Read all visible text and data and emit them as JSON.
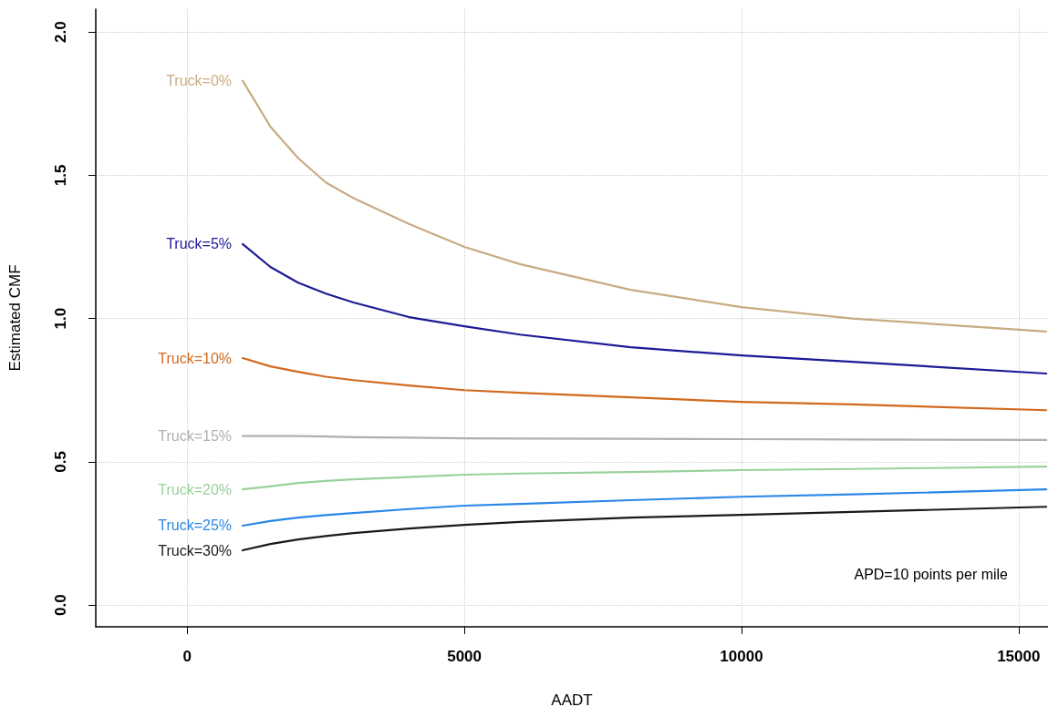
{
  "chart_data": {
    "type": "line",
    "xlabel": "AADT",
    "ylabel": "Estimated CMF",
    "annotations": [
      "APD=10 points per mile"
    ],
    "x": [
      1000,
      1500,
      2000,
      2500,
      3000,
      4000,
      5000,
      6000,
      8000,
      10000,
      12000,
      15500
    ],
    "series": [
      {
        "name": "Truck=0%",
        "color": "#c9ab82",
        "values": [
          1.83,
          1.67,
          1.56,
          1.475,
          1.42,
          1.33,
          1.25,
          1.19,
          1.1,
          1.04,
          1.0,
          0.955
        ]
      },
      {
        "name": "Truck=5%",
        "color": "#1c1a96",
        "values": [
          1.26,
          1.18,
          1.125,
          1.087,
          1.056,
          1.005,
          0.973,
          0.944,
          0.9,
          0.871,
          0.849,
          0.808
        ]
      },
      {
        "name": "Truck=10%",
        "color": "#d2691e",
        "values": [
          0.862,
          0.833,
          0.814,
          0.797,
          0.785,
          0.766,
          0.75,
          0.741,
          0.725,
          0.709,
          0.7,
          0.68
        ]
      },
      {
        "name": "Truck=15%",
        "color": "#b0b0b0",
        "values": [
          0.59,
          0.59,
          0.59,
          0.588,
          0.586,
          0.584,
          0.582,
          0.581,
          0.58,
          0.579,
          0.578,
          0.576
        ]
      },
      {
        "name": "Truck=20%",
        "color": "#99d199",
        "values": [
          0.404,
          0.414,
          0.426,
          0.433,
          0.439,
          0.447,
          0.455,
          0.459,
          0.464,
          0.471,
          0.475,
          0.483
        ]
      },
      {
        "name": "Truck=25%",
        "color": "#2b87e8",
        "values": [
          0.277,
          0.293,
          0.305,
          0.314,
          0.321,
          0.335,
          0.347,
          0.353,
          0.366,
          0.378,
          0.386,
          0.404
        ]
      },
      {
        "name": "Truck=30%",
        "color": "#1a1a1a",
        "values": [
          0.191,
          0.213,
          0.229,
          0.241,
          0.251,
          0.267,
          0.28,
          0.29,
          0.305,
          0.315,
          0.325,
          0.343
        ]
      }
    ],
    "xlim": [
      -1650,
      15530
    ],
    "xticks": [
      0,
      5000,
      10000,
      15000
    ],
    "ylim": [
      -0.076,
      2.08
    ],
    "yticks": [
      {
        "value": 0,
        "label": "0.0"
      },
      0.5,
      {
        "value": 1,
        "label": "1.0"
      },
      1.5,
      {
        "value": 2,
        "label": "2.0"
      }
    ],
    "grid": true,
    "legend": false,
    "line_style": "solid"
  }
}
